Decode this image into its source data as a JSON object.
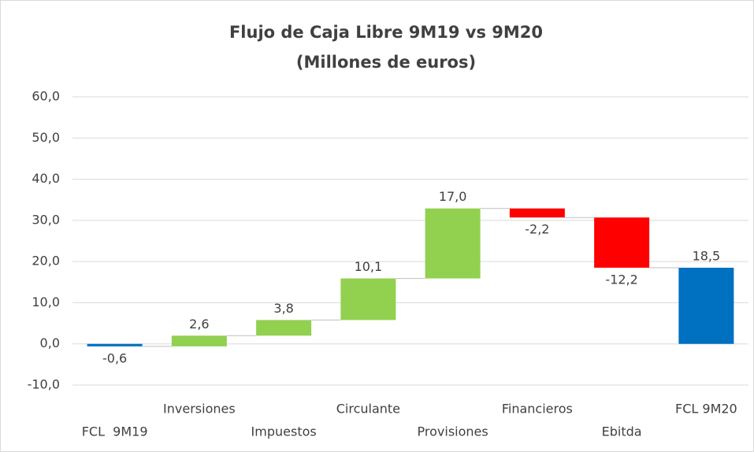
{
  "chart_data": {
    "type": "waterfall",
    "title": "Flujo de Caja Libre 9M19 vs 9M20",
    "subtitle": "(Millones de euros)",
    "categories": [
      "FCL  9M19",
      "Inversiones",
      "Impuestos",
      "Circulante",
      "Provisiones",
      "Financieros",
      "Ebitda",
      "FCL 9M20"
    ],
    "values": [
      -0.6,
      2.6,
      3.8,
      10.1,
      17.0,
      -2.2,
      -12.2,
      18.5
    ],
    "value_labels": [
      "-0,6",
      "2,6",
      "3,8",
      "10,1",
      "17,0",
      "-2,2",
      "-12,2",
      "18,5"
    ],
    "colors": [
      "#0070c0",
      "#92d050",
      "#92d050",
      "#92d050",
      "#92d050",
      "#ff0000",
      "#ff0000",
      "#0070c0"
    ],
    "ylim": [
      -10,
      60
    ],
    "yticks": [
      {
        "value": -10,
        "label": "-10,0"
      },
      {
        "value": 0,
        "label": "0,0"
      },
      {
        "value": 10,
        "label": "10,0"
      },
      {
        "value": 20,
        "label": "20,0"
      },
      {
        "value": 30,
        "label": "30,0"
      },
      {
        "value": 40,
        "label": "40,0"
      },
      {
        "value": 50,
        "label": "50,0"
      },
      {
        "value": 60,
        "label": "60,0"
      }
    ],
    "grid": true
  }
}
